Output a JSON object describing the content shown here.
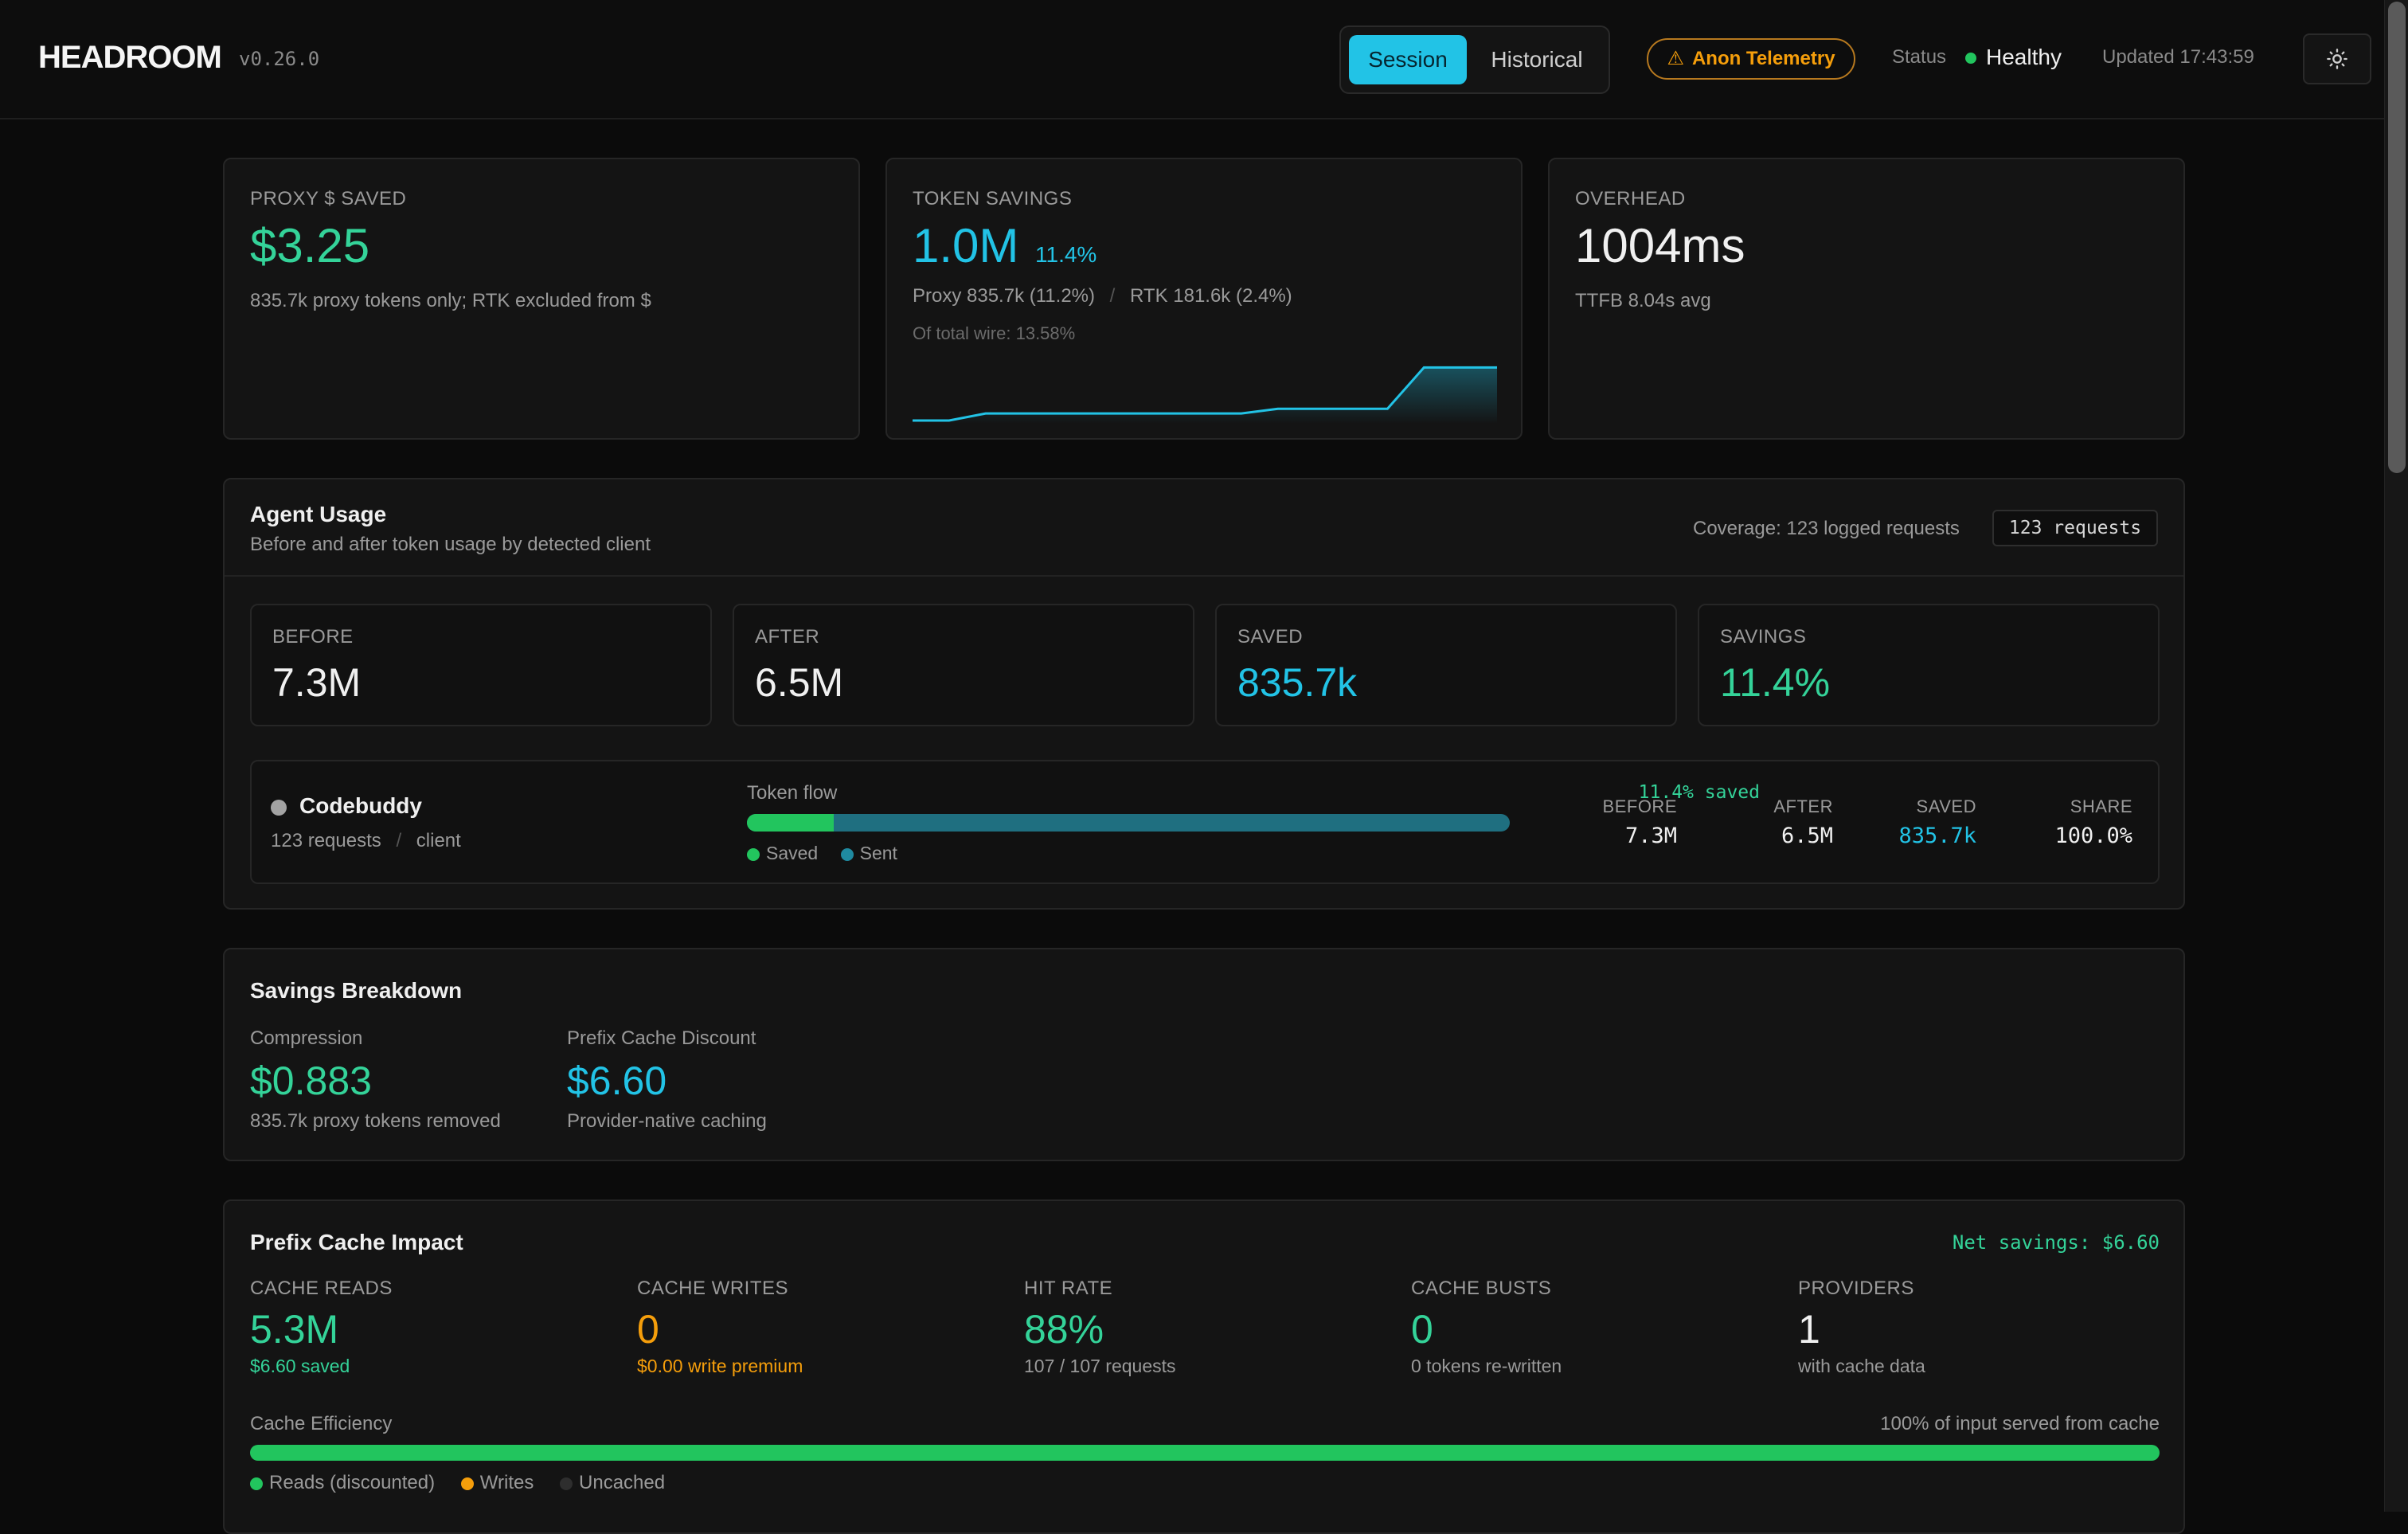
{
  "header": {
    "app_name": "HEADROOM",
    "version": "v0.26.0",
    "tabs": [
      {
        "label": "Session",
        "active": true
      },
      {
        "label": "Historical",
        "active": false
      }
    ],
    "telemetry_badge": "Anon Telemetry",
    "status_label": "Status",
    "status_value": "Healthy",
    "updated": "Updated 17:43:59"
  },
  "stats": {
    "proxy_saved": {
      "label": "PROXY $ SAVED",
      "value": "$3.25",
      "sub": "835.7k proxy tokens only; RTK excluded from $"
    },
    "token_savings": {
      "label": "TOKEN SAVINGS",
      "value": "1.0M",
      "pct": "11.4%",
      "proxy": "Proxy 835.7k (11.2%)",
      "separator": "/",
      "rtk": "RTK 181.6k (2.4%)",
      "of_total": "Of total wire: 13.58%"
    },
    "overhead": {
      "label": "OVERHEAD",
      "value": "1004ms",
      "sub": "TTFB 8.04s avg"
    }
  },
  "sparkline": {
    "type": "line",
    "values": [
      0,
      0,
      0.06,
      0.06,
      0.06,
      0.06,
      0.06,
      0.06,
      0.06,
      0.06,
      0.1,
      0.1,
      0.1,
      0.1,
      0.45,
      0.45,
      0.45
    ],
    "color": "#22c3e6"
  },
  "agent_usage": {
    "title": "Agent Usage",
    "subtitle": "Before and after token usage by detected client",
    "coverage": "Coverage: 123 logged requests",
    "requests_badge": "123 requests",
    "summary": [
      {
        "label": "BEFORE",
        "value": "7.3M",
        "color": "#f0f0f0"
      },
      {
        "label": "AFTER",
        "value": "6.5M",
        "color": "#f0f0f0"
      },
      {
        "label": "SAVED",
        "value": "835.7k",
        "color": "#22c3e6"
      },
      {
        "label": "SAVINGS",
        "value": "11.4%",
        "color": "#34d399"
      }
    ],
    "client": {
      "name": "Codebuddy",
      "requests": "123 requests",
      "separator": "/",
      "kind": "client",
      "flow_label": "Token flow",
      "flow_saved": "11.4% saved",
      "saved_fraction": 0.114,
      "legend_saved": "Saved",
      "legend_sent": "Sent",
      "cols": [
        {
          "label": "BEFORE",
          "value": "7.3M"
        },
        {
          "label": "AFTER",
          "value": "6.5M"
        },
        {
          "label": "SAVED",
          "value": "835.7k"
        },
        {
          "label": "SHARE",
          "value": "100.0%"
        }
      ]
    }
  },
  "savings_breakdown": {
    "title": "Savings Breakdown",
    "compression_label": "Compression",
    "compression_value": "$0.883",
    "compression_sub": "835.7k proxy tokens removed",
    "prefix_label": "Prefix Cache Discount",
    "prefix_value": "$6.60",
    "prefix_sub": "Provider-native caching"
  },
  "prefix_cache": {
    "title": "Prefix Cache Impact",
    "net": "Net savings: $6.60",
    "metrics": [
      {
        "label": "CACHE READS",
        "value": "5.3M",
        "sub": "$6.60 saved",
        "value_color": "#34d399",
        "sub_color": "#34d399"
      },
      {
        "label": "CACHE WRITES",
        "value": "0",
        "sub": "$0.00 write premium",
        "value_color": "#f59e0b",
        "sub_color": "#f59e0b"
      },
      {
        "label": "HIT RATE",
        "value": "88%",
        "sub": "107 / 107 requests",
        "value_color": "#34d399",
        "sub_color": "#9a9a9a"
      },
      {
        "label": "CACHE BUSTS",
        "value": "0",
        "sub": "0 tokens re-written",
        "value_color": "#34d399",
        "sub_color": "#9a9a9a"
      },
      {
        "label": "PROVIDERS",
        "value": "1",
        "sub": "with cache data",
        "value_color": "#f0f0f0",
        "sub_color": "#9a9a9a"
      }
    ],
    "efficiency_label": "Cache Efficiency",
    "efficiency_note": "100% of input served from cache",
    "efficiency_fraction": 1.0,
    "legend": [
      {
        "label": "Reads (discounted)",
        "color": "#22c55e"
      },
      {
        "label": "Writes",
        "color": "#f59e0b"
      },
      {
        "label": "Uncached",
        "color": "#2e2e2e"
      }
    ]
  }
}
